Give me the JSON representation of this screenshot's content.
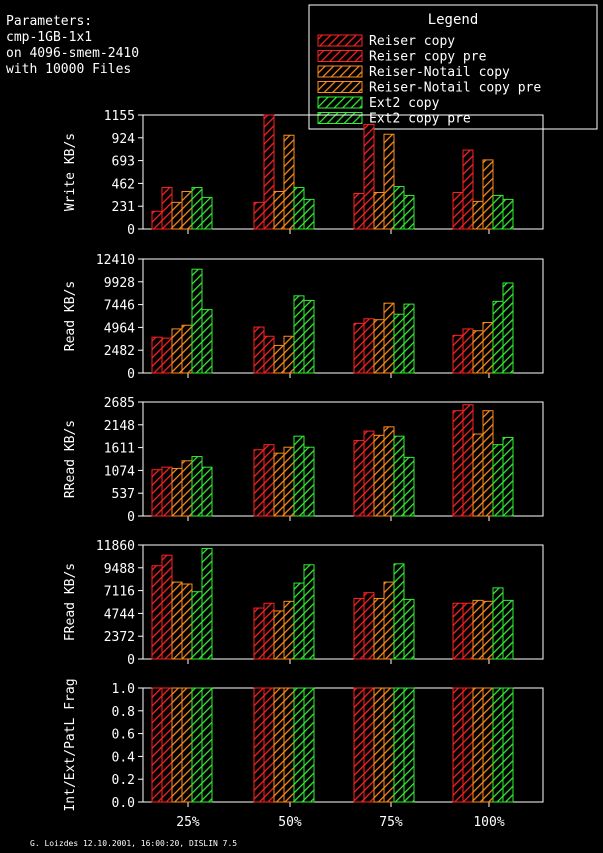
{
  "params": [
    "Parameters:",
    "cmp-1GB-1x1",
    "on 4096-smem-2410",
    "with 10000 Files"
  ],
  "legend": {
    "title": "Legend",
    "items": [
      {
        "name": "Reiser copy",
        "color": "#ff2222"
      },
      {
        "name": "Reiser copy pre",
        "color": "#ff2222"
      },
      {
        "name": "Reiser-Notail copy",
        "color": "#ff8c1a"
      },
      {
        "name": "Reiser-Notail copy pre",
        "color": "#ff8c1a"
      },
      {
        "name": "Ext2 copy",
        "color": "#33ee33"
      },
      {
        "name": "Ext2 copy pre",
        "color": "#33ee33"
      }
    ]
  },
  "footer": "G. Loizdes 12.10.2001, 16:00:20, DISLIN 7.5",
  "chart_data": [
    {
      "type": "bar",
      "ylabel": "Write KB/s",
      "yticks": [
        "0",
        "231",
        "462",
        "693",
        "924",
        "1155"
      ],
      "ylim": [
        0,
        1155
      ],
      "categories": [
        "25%",
        "50%",
        "75%",
        "100%"
      ],
      "series": [
        {
          "name": "Reiser copy",
          "values": [
            180,
            270,
            360,
            370
          ]
        },
        {
          "name": "Reiser copy pre",
          "values": [
            420,
            1160,
            1060,
            800
          ]
        },
        {
          "name": "Reiser-Notail copy",
          "values": [
            270,
            380,
            370,
            280
          ]
        },
        {
          "name": "Reiser-Notail copy pre",
          "values": [
            380,
            950,
            960,
            700
          ]
        },
        {
          "name": "Ext2 copy",
          "values": [
            420,
            420,
            430,
            340
          ]
        },
        {
          "name": "Ext2 copy pre",
          "values": [
            320,
            300,
            340,
            300
          ]
        }
      ]
    },
    {
      "type": "bar",
      "ylabel": "Read KB/s",
      "yticks": [
        "0",
        "2482",
        "4964",
        "7446",
        "9928",
        "12410"
      ],
      "ylim": [
        0,
        12410
      ],
      "categories": [
        "25%",
        "50%",
        "75%",
        "100%"
      ],
      "series": [
        {
          "name": "Reiser copy",
          "values": [
            3900,
            5000,
            5400,
            4100
          ]
        },
        {
          "name": "Reiser copy pre",
          "values": [
            3800,
            4000,
            5900,
            4800
          ]
        },
        {
          "name": "Reiser-Notail copy",
          "values": [
            4800,
            3000,
            5800,
            4600
          ]
        },
        {
          "name": "Reiser-Notail copy pre",
          "values": [
            5200,
            4000,
            7600,
            5500
          ]
        },
        {
          "name": "Ext2 copy",
          "values": [
            11300,
            8400,
            6400,
            7800
          ]
        },
        {
          "name": "Ext2 copy pre",
          "values": [
            6900,
            7900,
            7500,
            9800
          ]
        }
      ]
    },
    {
      "type": "bar",
      "ylabel": "RRead KB/s",
      "yticks": [
        "0",
        "537",
        "1074",
        "1611",
        "2148",
        "2685"
      ],
      "ylim": [
        0,
        2685
      ],
      "categories": [
        "25%",
        "50%",
        "75%",
        "100%"
      ],
      "series": [
        {
          "name": "Reiser copy",
          "values": [
            1090,
            1560,
            1780,
            2480
          ]
        },
        {
          "name": "Reiser copy pre",
          "values": [
            1150,
            1680,
            2000,
            2620
          ]
        },
        {
          "name": "Reiser-Notail copy",
          "values": [
            1120,
            1480,
            1900,
            1930
          ]
        },
        {
          "name": "Reiser-Notail copy pre",
          "values": [
            1300,
            1620,
            2100,
            2480
          ]
        },
        {
          "name": "Ext2 copy",
          "values": [
            1400,
            1880,
            1880,
            1680
          ]
        },
        {
          "name": "Ext2 copy pre",
          "values": [
            1150,
            1620,
            1380,
            1850
          ]
        }
      ]
    },
    {
      "type": "bar",
      "ylabel": "FRead KB/s",
      "yticks": [
        "0",
        "2372",
        "4744",
        "7116",
        "9488",
        "11860"
      ],
      "ylim": [
        0,
        11860
      ],
      "categories": [
        "25%",
        "50%",
        "75%",
        "100%"
      ],
      "series": [
        {
          "name": "Reiser copy",
          "values": [
            9700,
            5300,
            6300,
            5800
          ]
        },
        {
          "name": "Reiser copy pre",
          "values": [
            10800,
            5800,
            6900,
            5800
          ]
        },
        {
          "name": "Reiser-Notail copy",
          "values": [
            8000,
            5000,
            6300,
            6100
          ]
        },
        {
          "name": "Reiser-Notail copy pre",
          "values": [
            7800,
            6000,
            8000,
            6000
          ]
        },
        {
          "name": "Ext2 copy",
          "values": [
            7000,
            7900,
            9900,
            7400
          ]
        },
        {
          "name": "Ext2 copy pre",
          "values": [
            11500,
            9800,
            6200,
            6100
          ]
        }
      ]
    },
    {
      "type": "bar",
      "ylabel": "Int/Ext/PatL Frag",
      "yticks": [
        "0.0",
        "0.2",
        "0.4",
        "0.6",
        "0.8",
        "1.0"
      ],
      "ylim": [
        0,
        1.0
      ],
      "categories": [
        "25%",
        "50%",
        "75%",
        "100%"
      ],
      "series": [
        {
          "name": "Reiser copy",
          "values": [
            1.0,
            1.0,
            1.0,
            1.0
          ]
        },
        {
          "name": "Reiser copy pre",
          "values": [
            1.0,
            1.0,
            1.0,
            1.0
          ]
        },
        {
          "name": "Reiser-Notail copy",
          "values": [
            1.0,
            1.0,
            1.0,
            1.0
          ]
        },
        {
          "name": "Reiser-Notail copy pre",
          "values": [
            1.0,
            1.0,
            1.0,
            1.0
          ]
        },
        {
          "name": "Ext2 copy",
          "values": [
            1.0,
            1.0,
            1.0,
            1.0
          ]
        },
        {
          "name": "Ext2 copy pre",
          "values": [
            1.0,
            1.0,
            1.0,
            1.0
          ]
        }
      ]
    }
  ]
}
